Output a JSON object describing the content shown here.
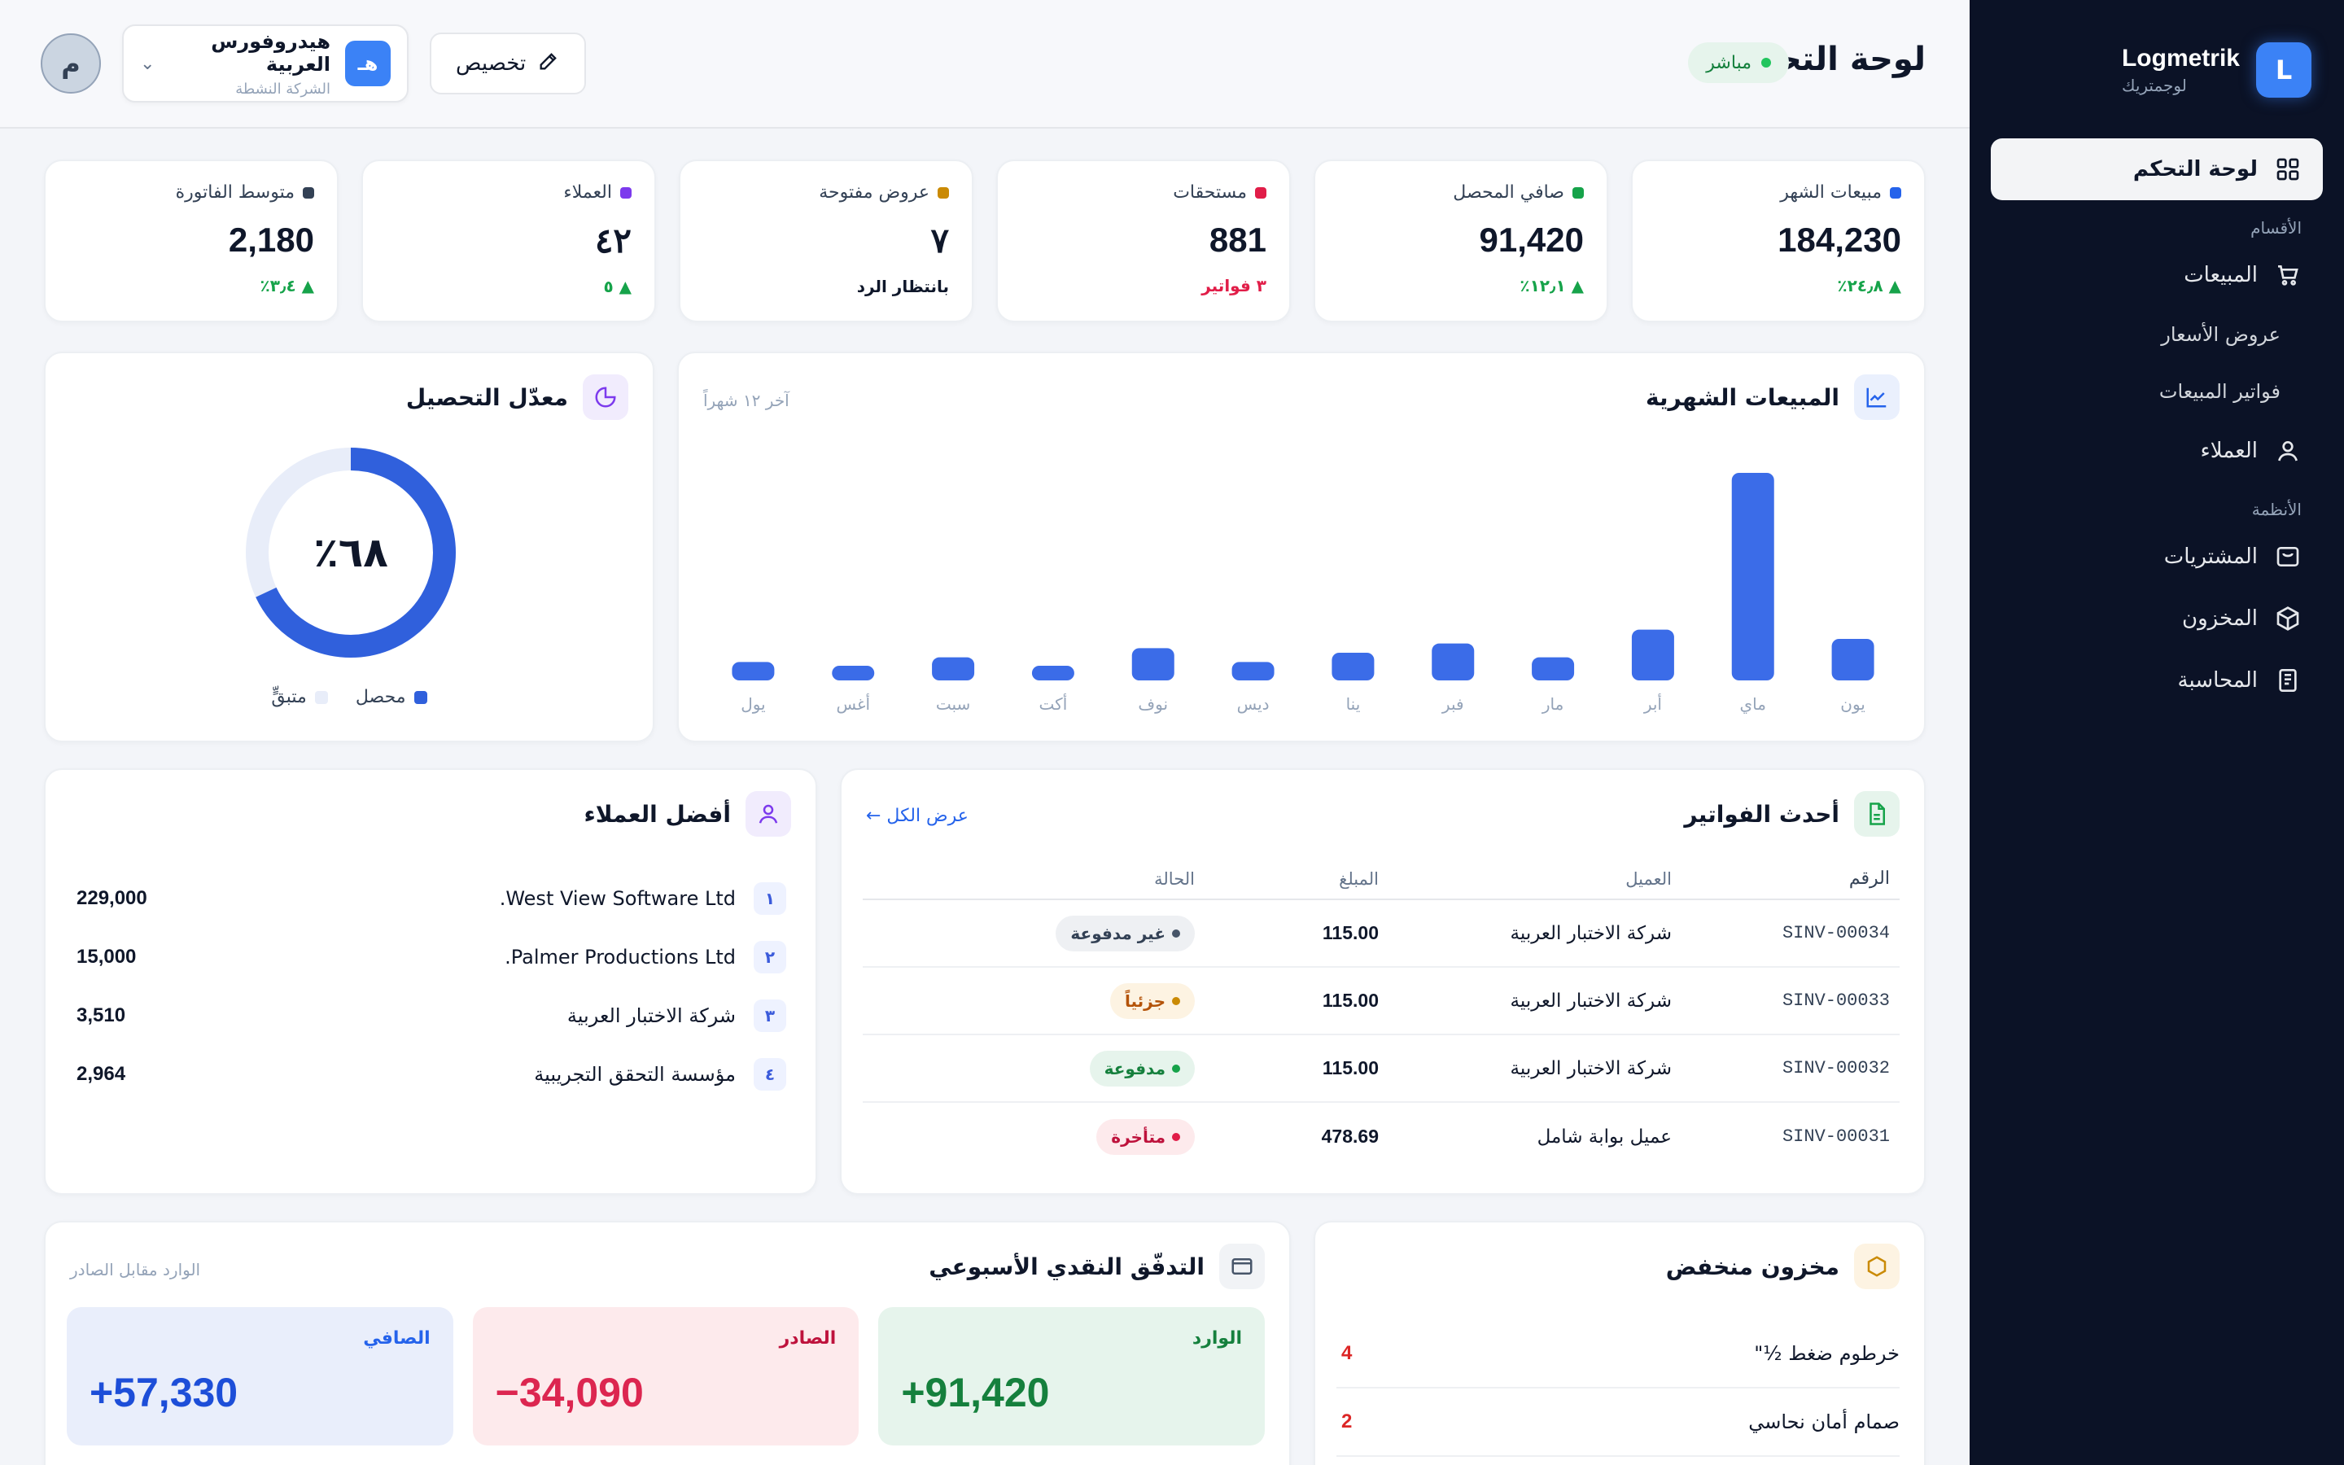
{
  "brand": {
    "name": "Logmetrik",
    "sub": "لوجمتريك",
    "logo_letter": "L",
    "accent": "#3b82f6"
  },
  "sidebar": {
    "items": [
      {
        "label": "لوحة التحكم",
        "icon": "grid-icon",
        "active": true
      },
      {
        "section": "الأقسام"
      },
      {
        "label": "المبيعات",
        "icon": "cart-icon"
      },
      {
        "label": "عروض الأسعار",
        "sub": true
      },
      {
        "label": "فواتير المبيعات",
        "sub": true
      },
      {
        "label": "العملاء",
        "icon": "user-icon"
      },
      {
        "section": "الأنظمة"
      },
      {
        "label": "المشتريات",
        "icon": "bag-icon"
      },
      {
        "label": "المخزون",
        "icon": "box-icon"
      },
      {
        "label": "المحاسبة",
        "icon": "ledger-icon"
      }
    ]
  },
  "header": {
    "title": "لوحة التحكم",
    "live": "مباشر",
    "customize": "تخصيص",
    "company": {
      "name": "هيدروفورس العربية",
      "sub": "الشركة النشطة",
      "logo": "هـ"
    },
    "avatar": "م"
  },
  "kpis": [
    {
      "label": "مبيعات الشهر",
      "value": "184,230",
      "delta": "▲ ٢٤٫٨٪",
      "dot": "#2563eb",
      "delta_color": "#16a34a"
    },
    {
      "label": "صافي المحصل",
      "value": "91,420",
      "delta": "▲ ١٢٫١٪",
      "dot": "#16a34a",
      "delta_color": "#16a34a"
    },
    {
      "label": "مستحقات",
      "value": "881",
      "delta": "٣ فواتير",
      "dot": "#e11d48",
      "delta_color": "#e11d48"
    },
    {
      "label": "عروض مفتوحة",
      "value": "٧",
      "delta": "بانتظار الرد",
      "dot": "#ca8a04",
      "delta_color": "#0f172a"
    },
    {
      "label": "العملاء",
      "value": "٤٢",
      "delta": "▲ ٥",
      "dot": "#7c3aed",
      "delta_color": "#16a34a"
    },
    {
      "label": "متوسط الفاتورة",
      "value": "2,180",
      "delta": "▲ ٣٫٤٪",
      "dot": "#334155",
      "delta_color": "#16a34a"
    }
  ],
  "sales_card": {
    "title": "المبيعات الشهرية",
    "hint": "آخر ١٢ شهراً"
  },
  "chart_data": {
    "type": "bar",
    "categories": [
      "يون",
      "ماي",
      "أبر",
      "مار",
      "فبر",
      "ينا",
      "ديس",
      "نوف",
      "أكت",
      "سبت",
      "أغس",
      "يول"
    ],
    "values": [
      9,
      45,
      11,
      5,
      8,
      6,
      4,
      7,
      3,
      5,
      3,
      4
    ],
    "ylim": [
      0,
      48
    ],
    "color": "#3b6ce8"
  },
  "collection": {
    "title": "معدّل التحصيل",
    "percent_value": 68,
    "percent_label": "٦٨٪",
    "collected_label": "محصل",
    "remaining_label": "متبقٍّ",
    "collected_color": "#3060dc",
    "remaining_color": "#e8edf9"
  },
  "invoices": {
    "title": "أحدث الفواتير",
    "view_all": "عرض الكل ←",
    "headers": {
      "num": "الرقم",
      "customer": "العميل",
      "amount": "المبلغ",
      "status": "الحالة"
    },
    "rows": [
      {
        "num": "SINV-00034",
        "customer": "شركة الاختبار العربية",
        "amount": "115.00",
        "status": "غير مدفوعة",
        "status_kind": "unpaid"
      },
      {
        "num": "SINV-00033",
        "customer": "شركة الاختبار العربية",
        "amount": "115.00",
        "status": "جزئياً",
        "status_kind": "partial"
      },
      {
        "num": "SINV-00032",
        "customer": "شركة الاختبار العربية",
        "amount": "115.00",
        "status": "مدفوعة",
        "status_kind": "paid"
      },
      {
        "num": "SINV-00031",
        "customer": "عميل بوابة شامل",
        "amount": "478.69",
        "status": "متأخرة",
        "status_kind": "overdue"
      }
    ]
  },
  "top_customers": {
    "title": "أفضل العملاء",
    "rows": [
      {
        "rank": "١",
        "name": "West View Software Ltd.",
        "value": "229,000"
      },
      {
        "rank": "٢",
        "name": "Palmer Productions Ltd.",
        "value": "15,000"
      },
      {
        "rank": "٣",
        "name": "شركة الاختبار العربية",
        "value": "3,510"
      },
      {
        "rank": "٤",
        "name": "مؤسسة التحقق التجريبية",
        "value": "2,964"
      }
    ]
  },
  "low_stock": {
    "title": "مخزون منخفض",
    "rows": [
      {
        "name": "خرطوم ضغط ½\"",
        "qty": "4"
      },
      {
        "name": "صمام أمان نحاسي",
        "qty": "2"
      }
    ]
  },
  "cashflow": {
    "title": "التدفّق النقدي الأسبوعي",
    "hint": "الوارد مقابل الصادر",
    "in_label": "الوارد",
    "in_value": "+91,420",
    "out_label": "الصادر",
    "out_value": "−34,090",
    "net_label": "الصافي",
    "net_value": "+57,330"
  }
}
